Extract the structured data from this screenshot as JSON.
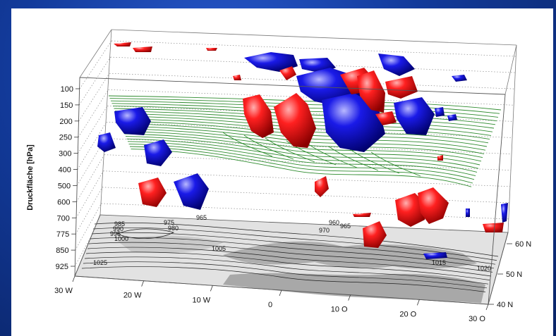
{
  "chart_data": {
    "type": "3d-volume",
    "ylabel": "Druckfläche [hPa]",
    "pressure_levels": [
      "100",
      "150",
      "200",
      "250",
      "300",
      "400",
      "500",
      "600",
      "700",
      "775",
      "850",
      "925"
    ],
    "longitude_ticks": [
      "30 W",
      "20 W",
      "10 W",
      "0",
      "10 O",
      "20 O",
      "30 O"
    ],
    "latitude_ticks": [
      "40 N",
      "50 N",
      "60 N"
    ],
    "surface_pressure_labels": [
      "965",
      "975",
      "980",
      "985",
      "990",
      "995",
      "1000",
      "1005",
      "1015",
      "1020",
      "1025",
      "960",
      "965",
      "970"
    ],
    "colors": {
      "positive_anomaly": "#e00000",
      "negative_anomaly": "#0a14d8",
      "jet_streamlines": "#2e8b2e",
      "land_light": "#d8d8d8",
      "land_dark": "#9a9a9a",
      "isobar": "#1a1a1a"
    },
    "grid": true
  }
}
